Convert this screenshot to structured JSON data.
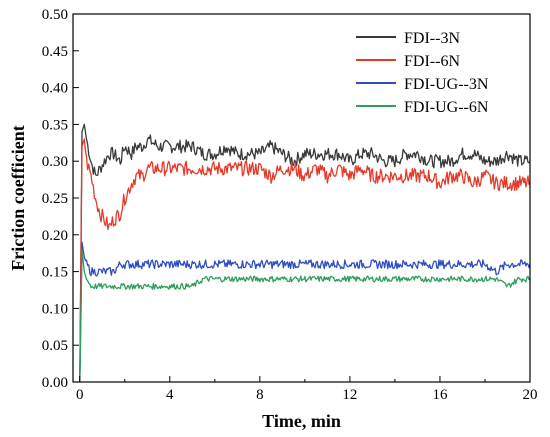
{
  "chart_data": {
    "type": "line",
    "xlabel": "Time, min",
    "ylabel": "Friction coefficient",
    "xlim": [
      -0.3,
      20
    ],
    "ylim": [
      0,
      0.5
    ],
    "x_ticks": [
      "0",
      "4",
      "8",
      "12",
      "16",
      "20"
    ],
    "y_ticks": [
      "0.00",
      "0.05",
      "0.10",
      "0.15",
      "0.20",
      "0.25",
      "0.30",
      "0.35",
      "0.40",
      "0.45",
      "0.50"
    ],
    "grid": false,
    "legend_position": "top-right",
    "series": [
      {
        "name": "FDI--3N",
        "color": "#3a3a3a",
        "x": [
          0,
          0.1,
          0.2,
          0.3,
          0.5,
          0.7,
          0.9,
          1.1,
          1.3,
          1.5,
          1.8,
          2.0,
          2.3,
          2.5,
          2.8,
          3.0,
          3.5,
          4.0,
          4.5,
          5.0,
          5.5,
          6.0,
          6.5,
          7.0,
          7.5,
          8.0,
          8.5,
          9.0,
          9.5,
          10.0,
          10.5,
          11.0,
          11.5,
          12.0,
          12.5,
          13.0,
          13.5,
          14.0,
          14.5,
          15.0,
          15.5,
          16.0,
          16.5,
          17.0,
          17.5,
          18.0,
          18.5,
          19.0,
          19.5,
          20.0
        ],
        "y": [
          0.0,
          0.34,
          0.35,
          0.33,
          0.3,
          0.28,
          0.29,
          0.3,
          0.31,
          0.31,
          0.3,
          0.32,
          0.31,
          0.32,
          0.32,
          0.33,
          0.32,
          0.32,
          0.32,
          0.32,
          0.31,
          0.31,
          0.32,
          0.31,
          0.31,
          0.31,
          0.32,
          0.31,
          0.3,
          0.31,
          0.31,
          0.31,
          0.31,
          0.3,
          0.31,
          0.31,
          0.3,
          0.3,
          0.31,
          0.31,
          0.3,
          0.3,
          0.3,
          0.31,
          0.31,
          0.3,
          0.3,
          0.31,
          0.3,
          0.3
        ]
      },
      {
        "name": "FDI--6N",
        "color": "#e53a2a",
        "x": [
          0,
          0.1,
          0.2,
          0.3,
          0.5,
          0.7,
          0.9,
          1.1,
          1.3,
          1.5,
          1.8,
          2.0,
          2.3,
          2.5,
          2.8,
          3.0,
          3.5,
          4.0,
          4.5,
          5.0,
          5.5,
          6.0,
          6.5,
          7.0,
          7.5,
          8.0,
          8.5,
          9.0,
          9.5,
          10.0,
          10.5,
          11.0,
          11.5,
          12.0,
          12.5,
          13.0,
          13.5,
          14.0,
          14.5,
          15.0,
          15.5,
          16.0,
          16.5,
          17.0,
          17.5,
          18.0,
          18.5,
          19.0,
          19.5,
          20.0
        ],
        "y": [
          0.0,
          0.32,
          0.33,
          0.3,
          0.28,
          0.25,
          0.23,
          0.22,
          0.21,
          0.22,
          0.23,
          0.25,
          0.27,
          0.28,
          0.28,
          0.29,
          0.29,
          0.29,
          0.29,
          0.29,
          0.29,
          0.29,
          0.29,
          0.29,
          0.29,
          0.29,
          0.28,
          0.29,
          0.29,
          0.28,
          0.29,
          0.28,
          0.29,
          0.28,
          0.29,
          0.28,
          0.28,
          0.28,
          0.28,
          0.28,
          0.28,
          0.27,
          0.28,
          0.28,
          0.27,
          0.28,
          0.27,
          0.27,
          0.27,
          0.27
        ]
      },
      {
        "name": "FDI-UG--3N",
        "color": "#2e4fc4",
        "x": [
          0,
          0.1,
          0.2,
          0.3,
          0.5,
          0.7,
          0.9,
          1.1,
          1.3,
          1.5,
          1.8,
          2.0,
          2.3,
          2.5,
          2.8,
          3.0,
          3.5,
          4.0,
          4.5,
          5.0,
          5.5,
          6.0,
          6.5,
          7.0,
          7.5,
          8.0,
          8.5,
          9.0,
          9.5,
          10.0,
          10.5,
          11.0,
          11.5,
          12.0,
          12.5,
          13.0,
          13.5,
          14.0,
          14.5,
          15.0,
          15.5,
          16.0,
          16.5,
          17.0,
          17.5,
          18.0,
          18.5,
          19.0,
          19.5,
          20.0
        ],
        "y": [
          0.0,
          0.19,
          0.17,
          0.16,
          0.15,
          0.15,
          0.15,
          0.15,
          0.15,
          0.15,
          0.16,
          0.16,
          0.16,
          0.16,
          0.16,
          0.16,
          0.16,
          0.16,
          0.16,
          0.16,
          0.16,
          0.16,
          0.16,
          0.16,
          0.16,
          0.16,
          0.16,
          0.16,
          0.16,
          0.16,
          0.16,
          0.16,
          0.16,
          0.16,
          0.16,
          0.16,
          0.16,
          0.16,
          0.16,
          0.16,
          0.16,
          0.16,
          0.16,
          0.16,
          0.16,
          0.16,
          0.15,
          0.16,
          0.16,
          0.16
        ]
      },
      {
        "name": "FDI-UG--6N",
        "color": "#2e9e5a",
        "x": [
          0,
          0.1,
          0.2,
          0.3,
          0.5,
          0.7,
          0.9,
          1.1,
          1.3,
          1.5,
          1.8,
          2.0,
          2.3,
          2.5,
          2.8,
          3.0,
          3.5,
          4.0,
          4.5,
          5.0,
          5.5,
          6.0,
          6.5,
          7.0,
          7.5,
          8.0,
          8.5,
          9.0,
          9.5,
          10.0,
          10.5,
          11.0,
          11.5,
          12.0,
          12.5,
          13.0,
          13.5,
          14.0,
          14.5,
          15.0,
          15.5,
          16.0,
          16.5,
          17.0,
          17.5,
          18.0,
          18.5,
          19.0,
          19.5,
          20.0
        ],
        "y": [
          0.0,
          0.18,
          0.15,
          0.14,
          0.13,
          0.13,
          0.13,
          0.13,
          0.13,
          0.13,
          0.13,
          0.13,
          0.13,
          0.13,
          0.13,
          0.13,
          0.13,
          0.13,
          0.13,
          0.13,
          0.14,
          0.14,
          0.14,
          0.14,
          0.14,
          0.14,
          0.14,
          0.14,
          0.14,
          0.14,
          0.14,
          0.14,
          0.14,
          0.14,
          0.14,
          0.14,
          0.14,
          0.14,
          0.14,
          0.14,
          0.14,
          0.14,
          0.14,
          0.14,
          0.14,
          0.14,
          0.14,
          0.13,
          0.14,
          0.14
        ]
      }
    ]
  }
}
